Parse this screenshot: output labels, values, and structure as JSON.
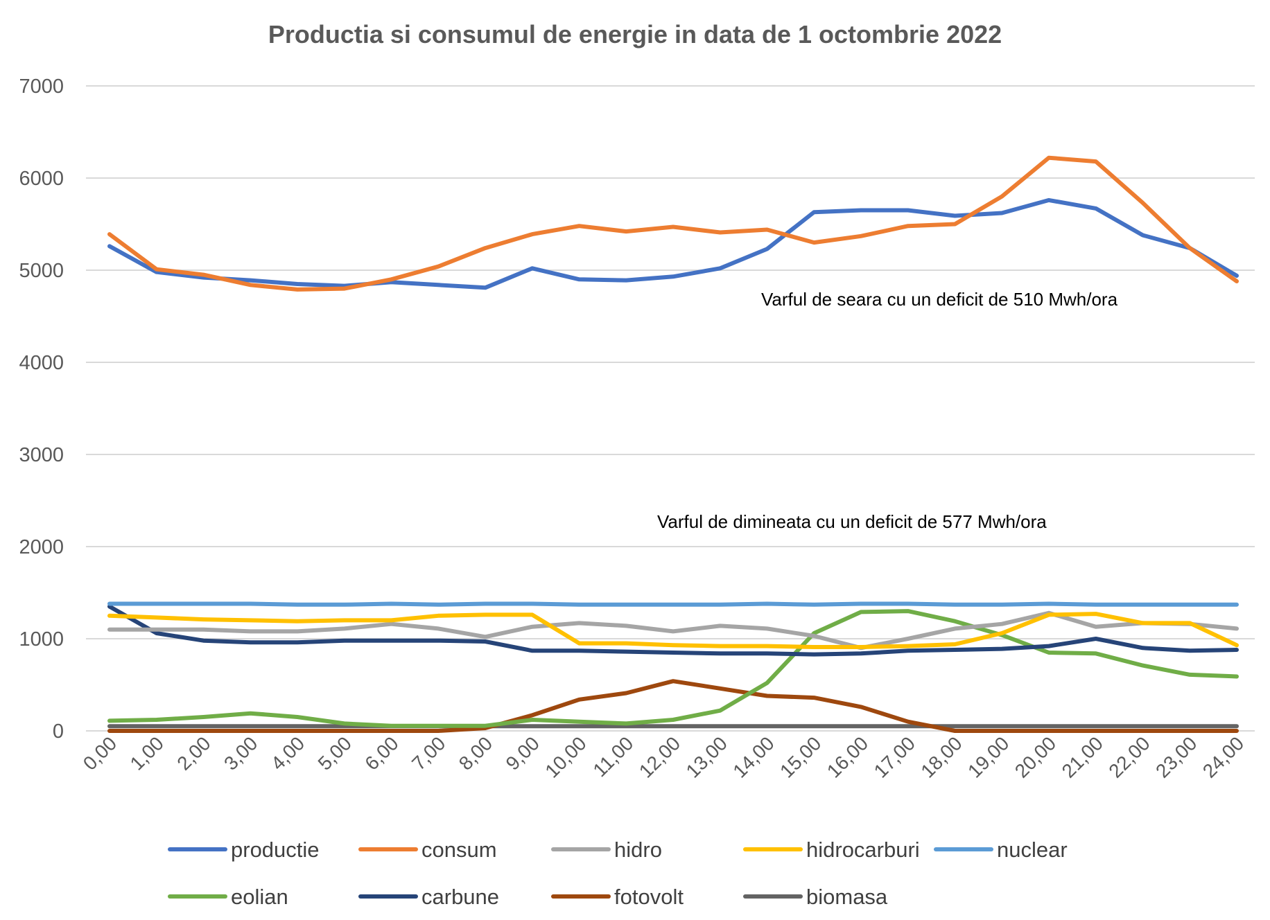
{
  "chart_data": {
    "type": "line",
    "title": "Productia si consumul de energie in data de 1 octombrie 2022",
    "xlabel": "",
    "ylabel": "",
    "ylim": [
      0,
      7000
    ],
    "yticks": [
      0,
      1000,
      2000,
      3000,
      4000,
      5000,
      6000,
      7000
    ],
    "grid": true,
    "legend_position": "bottom",
    "categories": [
      "0,00",
      "1,00",
      "2,00",
      "3,00",
      "4,00",
      "5,00",
      "6,00",
      "7,00",
      "8,00",
      "9,00",
      "10,00",
      "11,00",
      "12,00",
      "13,00",
      "14,00",
      "15,00",
      "16,00",
      "17,00",
      "18,00",
      "19,00",
      "20,00",
      "21,00",
      "22,00",
      "23,00",
      "24,00"
    ],
    "series": [
      {
        "name": "productie",
        "color": "#4472c4",
        "values": [
          5260,
          4980,
          4920,
          4890,
          4850,
          4830,
          4870,
          4840,
          4810,
          5020,
          4900,
          4890,
          4930,
          5020,
          5230,
          5630,
          5650,
          5650,
          5590,
          5620,
          5760,
          5670,
          5380,
          5240,
          4940
        ]
      },
      {
        "name": "consum",
        "color": "#ed7d31",
        "values": [
          5390,
          5010,
          4950,
          4840,
          4790,
          4800,
          4900,
          5040,
          5240,
          5390,
          5480,
          5420,
          5470,
          5410,
          5440,
          5300,
          5370,
          5480,
          5500,
          5800,
          6220,
          6180,
          5730,
          5240,
          4880
        ]
      },
      {
        "name": "hidro",
        "color": "#a5a5a5",
        "values": [
          1100,
          1100,
          1100,
          1080,
          1080,
          1110,
          1160,
          1110,
          1020,
          1130,
          1170,
          1140,
          1080,
          1140,
          1110,
          1030,
          900,
          1000,
          1110,
          1160,
          1280,
          1130,
          1170,
          1160,
          1110
        ]
      },
      {
        "name": "hidrocarburi",
        "color": "#ffc000",
        "values": [
          1250,
          1230,
          1210,
          1200,
          1190,
          1200,
          1200,
          1250,
          1260,
          1260,
          950,
          950,
          930,
          920,
          920,
          910,
          910,
          920,
          940,
          1060,
          1260,
          1270,
          1170,
          1170,
          930
        ]
      },
      {
        "name": "nuclear",
        "color": "#5b9bd5",
        "values": [
          1380,
          1380,
          1380,
          1380,
          1370,
          1370,
          1380,
          1370,
          1380,
          1380,
          1370,
          1370,
          1370,
          1370,
          1380,
          1370,
          1380,
          1380,
          1370,
          1370,
          1380,
          1370,
          1370,
          1370,
          1370
        ]
      },
      {
        "name": "eolian",
        "color": "#70ad47",
        "values": [
          110,
          120,
          150,
          190,
          150,
          80,
          55,
          55,
          55,
          120,
          100,
          80,
          120,
          220,
          520,
          1060,
          1290,
          1300,
          1190,
          1040,
          850,
          840,
          710,
          610,
          590
        ]
      },
      {
        "name": "carbune",
        "color": "#264478",
        "values": [
          1350,
          1060,
          980,
          960,
          960,
          980,
          980,
          980,
          970,
          870,
          870,
          860,
          850,
          840,
          840,
          830,
          840,
          870,
          880,
          890,
          920,
          1000,
          900,
          870,
          880
        ]
      },
      {
        "name": "fotovolt",
        "color": "#9e480e",
        "values": [
          0,
          0,
          0,
          0,
          0,
          0,
          0,
          0,
          30,
          170,
          340,
          410,
          540,
          460,
          380,
          360,
          260,
          100,
          0,
          0,
          0,
          0,
          0,
          0,
          0
        ]
      },
      {
        "name": "biomasa",
        "color": "#636363",
        "values": [
          50,
          50,
          50,
          50,
          50,
          50,
          50,
          50,
          50,
          50,
          50,
          50,
          50,
          50,
          50,
          50,
          50,
          50,
          50,
          50,
          50,
          50,
          50,
          50,
          50
        ]
      }
    ],
    "annotations": [
      "Varful de seara cu un deficit de 510 Mwh/ora",
      "Varful de dimineata cu un deficit de 577 Mwh/ora"
    ]
  }
}
